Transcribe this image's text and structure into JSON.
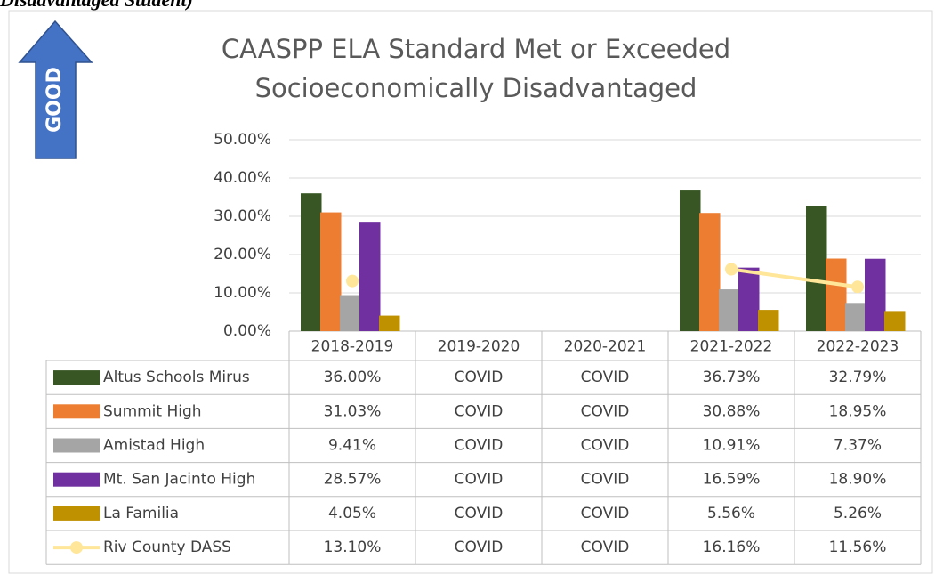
{
  "caption": "Disadvantaged Student)",
  "badge": "GOOD",
  "chart_data": {
    "type": "bar",
    "title": [
      "CAASPP ELA Standard Met or Exceeded",
      "Socioeconomically Disadvantaged"
    ],
    "categories": [
      "2018-2019",
      "2019-2020",
      "2020-2021",
      "2021-2022",
      "2022-2023"
    ],
    "ylim": [
      0,
      50
    ],
    "yticks": [
      {
        "value": 0,
        "label": "0.00%"
      },
      {
        "value": 10,
        "label": "10.00%"
      },
      {
        "value": 20,
        "label": "20.00%"
      },
      {
        "value": 30,
        "label": "30.00%"
      },
      {
        "value": 40,
        "label": "40.00%"
      },
      {
        "value": 50,
        "label": "50.00%"
      }
    ],
    "grid": true,
    "series": [
      {
        "name": "Altus Schools Mirus",
        "type": "bar",
        "color": "#375623",
        "values": [
          36.0,
          null,
          null,
          36.73,
          32.79
        ],
        "value_labels": [
          "36.00%",
          "COVID",
          "COVID",
          "36.73%",
          "32.79%"
        ]
      },
      {
        "name": "Summit High",
        "type": "bar",
        "color": "#ed7d31",
        "values": [
          31.03,
          null,
          null,
          30.88,
          18.95
        ],
        "value_labels": [
          "31.03%",
          "COVID",
          "COVID",
          "30.88%",
          "18.95%"
        ]
      },
      {
        "name": "Amistad High",
        "type": "bar",
        "color": "#a5a5a5",
        "values": [
          9.41,
          null,
          null,
          10.91,
          7.37
        ],
        "value_labels": [
          "9.41%",
          "COVID",
          "COVID",
          "10.91%",
          "7.37%"
        ]
      },
      {
        "name": "Mt. San Jacinto High",
        "type": "bar",
        "color": "#7030a0",
        "values": [
          28.57,
          null,
          null,
          16.59,
          18.9
        ],
        "value_labels": [
          "28.57%",
          "COVID",
          "COVID",
          "16.59%",
          "18.90%"
        ]
      },
      {
        "name": "La Familia",
        "type": "bar",
        "color": "#bf9000",
        "values": [
          4.05,
          null,
          null,
          5.56,
          5.26
        ],
        "value_labels": [
          "4.05%",
          "COVID",
          "COVID",
          "5.56%",
          "5.26%"
        ]
      },
      {
        "name": "Riv County DASS",
        "type": "line",
        "color": "#ffe699",
        "values": [
          13.1,
          null,
          null,
          16.16,
          11.56
        ],
        "value_labels": [
          "13.10%",
          "COVID",
          "COVID",
          "16.16%",
          "11.56%"
        ]
      }
    ]
  }
}
